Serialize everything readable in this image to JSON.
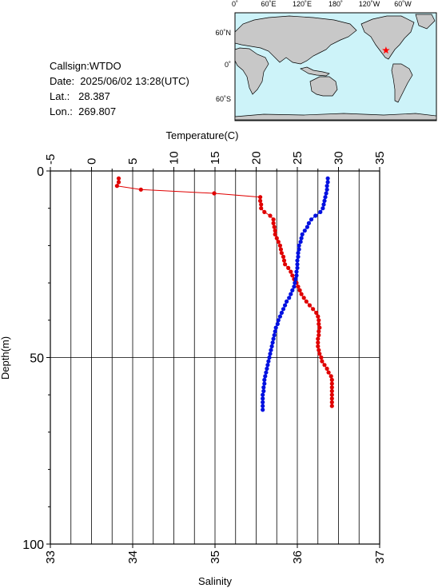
{
  "info": {
    "callsign": "Callsign:WTDO",
    "date": "Date:  2025/06/02 13:28(UTC)",
    "lat": "Lat.:   28.387",
    "lon": "Lon.:  269.807"
  },
  "map": {
    "top_labels": [
      "0˚",
      "60˚E",
      "120˚E",
      "180˚",
      "120˚W",
      "60˚W"
    ],
    "lat_labels": [
      "60˚N",
      "0˚",
      "60˚S"
    ],
    "ocean_color": "#cdf3f9",
    "land_color": "#c8c8c8",
    "marker_color": "#ff0000",
    "marker": "star-icon",
    "marker_lon": 269.807,
    "marker_lat": 28.387
  },
  "chart_data": {
    "type": "line",
    "top_axis_label": "Temperature(C)",
    "bottom_axis_label": "Salinity",
    "left_axis_label": "Depth(m)",
    "temperature_ticks": [
      "-5",
      "0",
      "5",
      "10",
      "15",
      "20",
      "25",
      "30",
      "35"
    ],
    "salinity_ticks": [
      "33",
      "34",
      "35",
      "36",
      "37"
    ],
    "depth_ticks": [
      "0",
      "50",
      "100"
    ],
    "temperature_range": [
      -5,
      35
    ],
    "salinity_range": [
      33,
      37
    ],
    "depth_range": [
      0,
      100
    ],
    "grid": "vertical lines every 2.5 C, horizontal line at 50 m",
    "series": [
      {
        "color": "#e00000",
        "axis": "temperature",
        "points": [
          [
            3.3,
            2
          ],
          [
            3.3,
            3
          ],
          [
            3.1,
            4
          ],
          [
            6.0,
            5
          ],
          [
            14.9,
            6
          ],
          [
            20.5,
            7
          ],
          [
            20.5,
            8
          ],
          [
            20.6,
            9
          ],
          [
            20.6,
            10
          ],
          [
            21.0,
            11
          ],
          [
            21.7,
            12
          ],
          [
            22.1,
            13
          ],
          [
            22.1,
            14
          ],
          [
            22.2,
            15
          ],
          [
            22.3,
            16
          ],
          [
            22.3,
            17
          ],
          [
            22.5,
            18
          ],
          [
            22.7,
            19
          ],
          [
            22.9,
            20
          ],
          [
            23.0,
            21
          ],
          [
            23.1,
            22
          ],
          [
            23.3,
            23
          ],
          [
            23.4,
            24
          ],
          [
            23.5,
            25
          ],
          [
            23.9,
            26
          ],
          [
            24.2,
            27
          ],
          [
            24.4,
            28
          ],
          [
            24.6,
            29
          ],
          [
            24.9,
            30
          ],
          [
            25.1,
            31
          ],
          [
            25.3,
            32
          ],
          [
            25.5,
            33
          ],
          [
            25.8,
            34
          ],
          [
            26.1,
            35
          ],
          [
            26.5,
            36
          ],
          [
            26.9,
            37
          ],
          [
            27.3,
            38
          ],
          [
            27.5,
            39
          ],
          [
            27.6,
            40
          ],
          [
            27.6,
            41
          ],
          [
            27.7,
            42
          ],
          [
            27.6,
            43
          ],
          [
            27.6,
            44
          ],
          [
            27.5,
            45
          ],
          [
            27.5,
            46
          ],
          [
            27.5,
            47
          ],
          [
            27.6,
            48
          ],
          [
            27.7,
            49
          ],
          [
            27.9,
            50
          ],
          [
            28.0,
            51
          ],
          [
            28.3,
            52
          ],
          [
            28.6,
            53
          ],
          [
            28.8,
            54
          ],
          [
            29.1,
            55
          ],
          [
            29.2,
            56
          ],
          [
            29.2,
            57
          ],
          [
            29.2,
            58
          ],
          [
            29.2,
            59
          ],
          [
            29.2,
            60
          ],
          [
            29.2,
            61
          ],
          [
            29.2,
            62
          ],
          [
            29.2,
            63
          ]
        ]
      },
      {
        "color": "#0010e0",
        "axis": "salinity",
        "points": [
          [
            36.37,
            2
          ],
          [
            36.37,
            3
          ],
          [
            36.36,
            4
          ],
          [
            36.36,
            5
          ],
          [
            36.35,
            6
          ],
          [
            36.34,
            7
          ],
          [
            36.33,
            8
          ],
          [
            36.32,
            9
          ],
          [
            36.31,
            10
          ],
          [
            36.28,
            11
          ],
          [
            36.22,
            12
          ],
          [
            36.17,
            13
          ],
          [
            36.14,
            14
          ],
          [
            36.12,
            15
          ],
          [
            36.09,
            16
          ],
          [
            36.06,
            17
          ],
          [
            36.05,
            18
          ],
          [
            36.04,
            19
          ],
          [
            36.02,
            20
          ],
          [
            36.02,
            21
          ],
          [
            36.01,
            22
          ],
          [
            36.01,
            23
          ],
          [
            36.0,
            24
          ],
          [
            36.0,
            25
          ],
          [
            36.0,
            26
          ],
          [
            35.99,
            27
          ],
          [
            35.99,
            28
          ],
          [
            35.98,
            29
          ],
          [
            35.97,
            30
          ],
          [
            35.96,
            31
          ],
          [
            35.94,
            32
          ],
          [
            35.92,
            33
          ],
          [
            35.9,
            34
          ],
          [
            35.87,
            35
          ],
          [
            35.85,
            36
          ],
          [
            35.83,
            37
          ],
          [
            35.81,
            38
          ],
          [
            35.79,
            39
          ],
          [
            35.77,
            40
          ],
          [
            35.76,
            41
          ],
          [
            35.74,
            42
          ],
          [
            35.73,
            43
          ],
          [
            35.72,
            44
          ],
          [
            35.71,
            45
          ],
          [
            35.7,
            46
          ],
          [
            35.69,
            47
          ],
          [
            35.68,
            48
          ],
          [
            35.67,
            49
          ],
          [
            35.66,
            50
          ],
          [
            35.65,
            51
          ],
          [
            35.64,
            52
          ],
          [
            35.63,
            53
          ],
          [
            35.62,
            54
          ],
          [
            35.61,
            55
          ],
          [
            35.6,
            56
          ],
          [
            35.6,
            57
          ],
          [
            35.59,
            58
          ],
          [
            35.59,
            59
          ],
          [
            35.58,
            60
          ],
          [
            35.58,
            61
          ],
          [
            35.58,
            62
          ],
          [
            35.58,
            63
          ],
          [
            35.58,
            64
          ]
        ]
      }
    ]
  }
}
